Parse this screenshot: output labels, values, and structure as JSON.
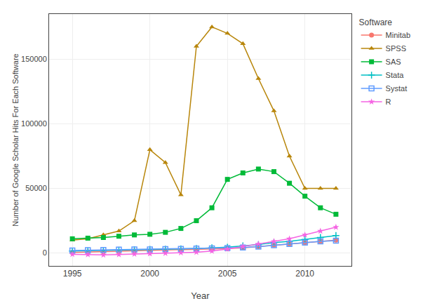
{
  "chart_data": {
    "type": "line",
    "x_label": "Year",
    "y_label": "Number of Google Scholar Hits For Each Software",
    "legend_title": "Software",
    "x": [
      1995,
      1996,
      1997,
      1998,
      1999,
      2000,
      2001,
      2002,
      2003,
      2004,
      2005,
      2006,
      2007,
      2008,
      2009,
      2010,
      2011,
      2012
    ],
    "series": [
      {
        "name": "Minitab",
        "color": "#F8766D",
        "marker": "circle",
        "values": [
          500,
          800,
          1000,
          1200,
          1500,
          1800,
          2000,
          2200,
          2500,
          3000,
          3500,
          4000,
          5000,
          6000,
          7000,
          8000,
          9000,
          10000
        ]
      },
      {
        "name": "SPSS",
        "color": "#B8860B",
        "marker": "triangle-up",
        "values": [
          10000,
          11000,
          14000,
          17000,
          25000,
          80000,
          70000,
          45000,
          160000,
          175000,
          170000,
          162000,
          135000,
          110000,
          75000,
          50000,
          50000,
          50000
        ]
      },
      {
        "name": "SAS",
        "color": "#00BA38",
        "marker": "square",
        "values": [
          11000,
          11500,
          12000,
          13000,
          14000,
          14500,
          16000,
          19000,
          25000,
          35000,
          57000,
          62000,
          65000,
          63000,
          54000,
          44000,
          35000,
          30000
        ]
      },
      {
        "name": "Stata",
        "color": "#00BFC4",
        "marker": "plus",
        "values": [
          1500,
          1700,
          2000,
          2200,
          2500,
          2800,
          3000,
          3200,
          3500,
          4000,
          4500,
          5500,
          6500,
          8000,
          9000,
          10500,
          12000,
          13500
        ]
      },
      {
        "name": "Systat",
        "color": "#619CFF",
        "marker": "square-open",
        "values": [
          2000,
          2200,
          2400,
          2600,
          2700,
          2800,
          3000,
          3200,
          3400,
          3600,
          3800,
          4200,
          5000,
          6000,
          7000,
          8000,
          9000,
          9500
        ]
      },
      {
        "name": "R",
        "color": "#F564E3",
        "marker": "star",
        "values": [
          -1000,
          -1200,
          -1500,
          -1200,
          -800,
          -500,
          -200,
          200,
          600,
          1500,
          3000,
          5000,
          7000,
          9000,
          11000,
          14000,
          17000,
          20000
        ]
      }
    ],
    "xlim": [
      1993.5,
      2013
    ],
    "ylim": [
      -10000,
      185000
    ],
    "xticks": [
      1995,
      2000,
      2005,
      2010
    ],
    "yticks": [
      0,
      50000,
      100000,
      150000
    ],
    "grid": true,
    "legend": "right"
  }
}
